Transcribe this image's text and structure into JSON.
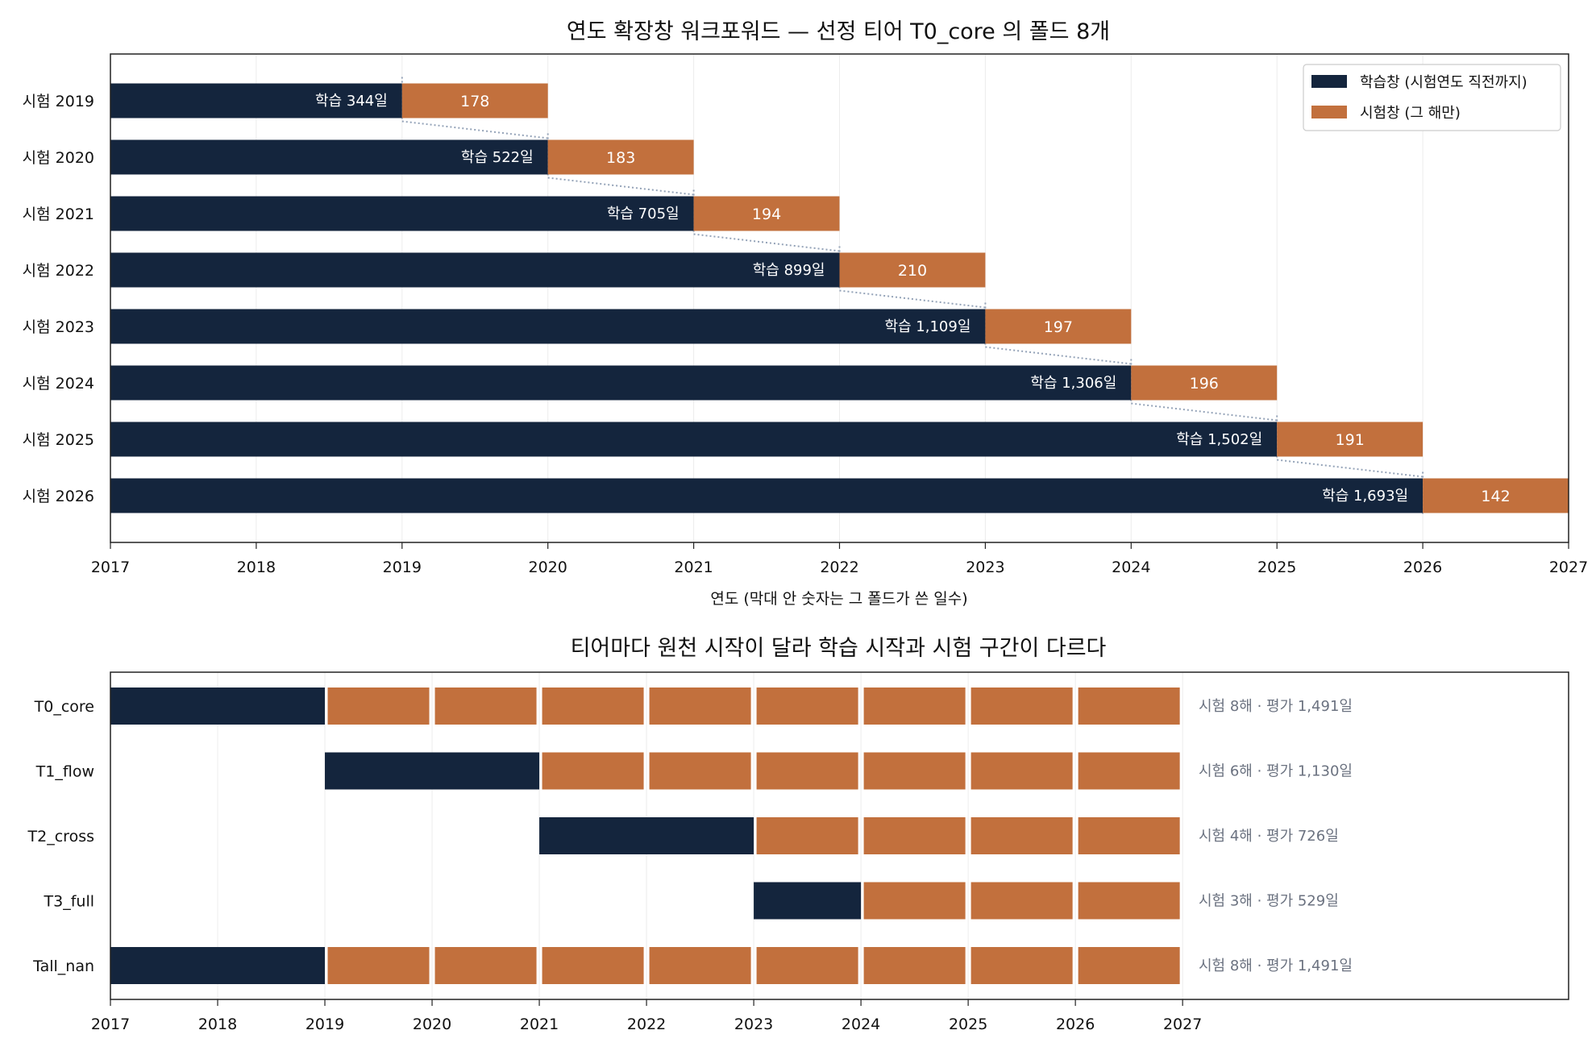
{
  "colors": {
    "train": "#14253d",
    "test": "#c2703d",
    "axis": "#222222",
    "grid": "#ececec",
    "connector": "#94a3b8",
    "annotation": "#6b7280"
  },
  "chart_data": [
    {
      "type": "bar",
      "orientation": "horizontal",
      "stacked": true,
      "title": "연도 확장창 워크포워드 — 선정 티어 T0_core 의 폴드 8개",
      "xlabel": "연도 (막대 안 숫자는 그 폴드가 쓴 일수)",
      "ylabel": "",
      "xlim": [
        2017,
        2027
      ],
      "xticks": [
        "2017",
        "2018",
        "2019",
        "2020",
        "2021",
        "2022",
        "2023",
        "2024",
        "2025",
        "2026",
        "2027"
      ],
      "legend": {
        "position": "top-right",
        "entries": [
          "학습창 (시험연도 직전까지)",
          "시험창 (그 해만)"
        ]
      },
      "folds": [
        {
          "label": "시험 2019",
          "train_start": 2017,
          "test_start": 2019,
          "test_end": 2020,
          "train_label": "학습 344일",
          "test_label": "178",
          "train_days": 344,
          "test_days": 178
        },
        {
          "label": "시험 2020",
          "train_start": 2017,
          "test_start": 2020,
          "test_end": 2021,
          "train_label": "학습 522일",
          "test_label": "183",
          "train_days": 522,
          "test_days": 183
        },
        {
          "label": "시험 2021",
          "train_start": 2017,
          "test_start": 2021,
          "test_end": 2022,
          "train_label": "학습 705일",
          "test_label": "194",
          "train_days": 705,
          "test_days": 194
        },
        {
          "label": "시험 2022",
          "train_start": 2017,
          "test_start": 2022,
          "test_end": 2023,
          "train_label": "학습 899일",
          "test_label": "210",
          "train_days": 899,
          "test_days": 210
        },
        {
          "label": "시험 2023",
          "train_start": 2017,
          "test_start": 2023,
          "test_end": 2024,
          "train_label": "학습 1,109일",
          "test_label": "197",
          "train_days": 1109,
          "test_days": 197
        },
        {
          "label": "시험 2024",
          "train_start": 2017,
          "test_start": 2024,
          "test_end": 2025,
          "train_label": "학습 1,306일",
          "test_label": "196",
          "train_days": 1306,
          "test_days": 196
        },
        {
          "label": "시험 2025",
          "train_start": 2017,
          "test_start": 2025,
          "test_end": 2026,
          "train_label": "학습 1,502일",
          "test_label": "191",
          "train_days": 1502,
          "test_days": 191
        },
        {
          "label": "시험 2026",
          "train_start": 2017,
          "test_start": 2026,
          "test_end": 2027,
          "train_label": "학습 1,693일",
          "test_label": "142",
          "train_days": 1693,
          "test_days": 142
        }
      ]
    },
    {
      "type": "bar",
      "orientation": "horizontal",
      "title": "티어마다 원천 시작이 달라 학습 시작과 시험 구간이 다르다",
      "xlabel": "",
      "ylabel": "",
      "xlim": [
        2017,
        2030.6
      ],
      "xticks": [
        "2017",
        "2018",
        "2019",
        "2020",
        "2021",
        "2022",
        "2023",
        "2024",
        "2025",
        "2026",
        "2027"
      ],
      "tiers": [
        {
          "label": "T0_core",
          "train_start": 2017,
          "train_end": 2019,
          "test_years": [
            2019,
            2020,
            2021,
            2022,
            2023,
            2024,
            2025,
            2026
          ],
          "note": "시험 8해 · 평가 1,491일"
        },
        {
          "label": "T1_flow",
          "train_start": 2019,
          "train_end": 2021,
          "test_years": [
            2021,
            2022,
            2023,
            2024,
            2025,
            2026
          ],
          "note": "시험 6해 · 평가 1,130일"
        },
        {
          "label": "T2_cross",
          "train_start": 2021,
          "train_end": 2023,
          "test_years": [
            2023,
            2024,
            2025,
            2026
          ],
          "note": "시험 4해 · 평가 726일"
        },
        {
          "label": "T3_full",
          "train_start": 2023,
          "train_end": 2024,
          "test_years": [
            2024,
            2025,
            2026
          ],
          "note": "시험 3해 · 평가 529일"
        },
        {
          "label": "Tall_nan",
          "train_start": 2017,
          "train_end": 2019,
          "test_years": [
            2019,
            2020,
            2021,
            2022,
            2023,
            2024,
            2025,
            2026
          ],
          "note": "시험 8해 · 평가 1,491일"
        }
      ]
    }
  ]
}
